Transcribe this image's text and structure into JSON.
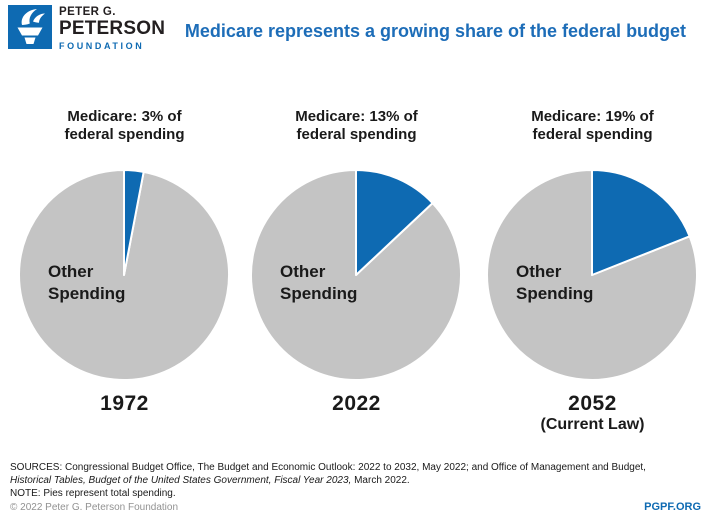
{
  "header": {
    "logo": {
      "line1": "PETER G.",
      "line2": "PETERSON",
      "line3": "FOUNDATION"
    }
  },
  "chart_data": {
    "type": "pie",
    "title": "Medicare represents a growing share of the federal budget",
    "colors": {
      "medicare": "#0e6ab2",
      "other": "#c4c4c4"
    },
    "legend_position": "in-slice labels",
    "pies": [
      {
        "callout_line1": "Medicare: 3% of",
        "callout_line2": "federal spending",
        "medicare_pct": 3,
        "other_pct": 97,
        "other_label_line1": "Other",
        "other_label_line2": "Spending",
        "year": "1972",
        "year_sub": ""
      },
      {
        "callout_line1": "Medicare: 13% of",
        "callout_line2": "federal spending",
        "medicare_pct": 13,
        "other_pct": 87,
        "other_label_line1": "Other",
        "other_label_line2": "Spending",
        "year": "2022",
        "year_sub": ""
      },
      {
        "callout_line1": "Medicare: 19% of",
        "callout_line2": "federal spending",
        "medicare_pct": 19,
        "other_pct": 81,
        "other_label_line1": "Other",
        "other_label_line2": "Spending",
        "year": "2052",
        "year_sub": "(Current Law)"
      }
    ]
  },
  "footer": {
    "sources_line1": "SOURCES: Congressional Budget Office, The Budget and Economic Outlook: 2022 to 2032, May 2022; and Office of Management and Budget,",
    "sources_line2_italic": "Historical Tables, Budget of the United States Government, Fiscal Year 2023,",
    "sources_line2_rest": " March 2022.",
    "note_line": "NOTE: Pies represent total spending.",
    "copyright": "© 2022 Peter G. Peterson Foundation",
    "site_link": "PGPF.ORG"
  }
}
